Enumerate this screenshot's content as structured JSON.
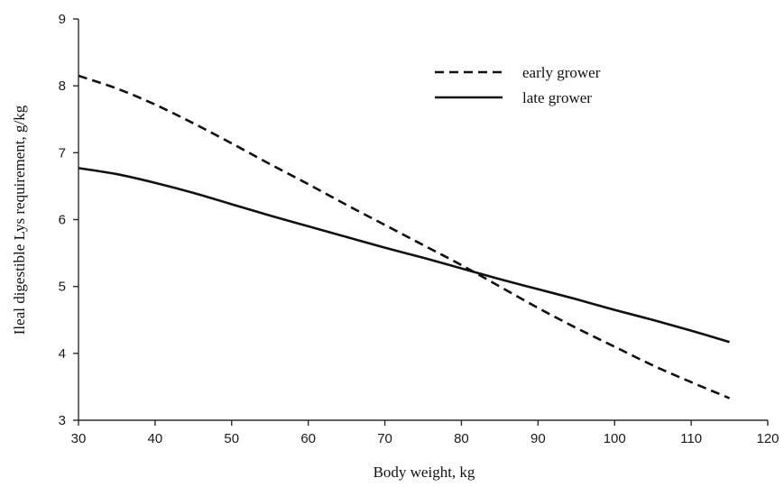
{
  "chart_data": {
    "type": "line",
    "title": "",
    "xlabel": "Body weight, kg",
    "ylabel": "Ileal digestible Lys requirement, g/kg",
    "xlim": [
      30,
      120
    ],
    "ylim": [
      3,
      9
    ],
    "xticks": [
      "30",
      "40",
      "50",
      "60",
      "70",
      "80",
      "90",
      "100",
      "110",
      "120"
    ],
    "yticks": [
      "3",
      "4",
      "5",
      "6",
      "7",
      "8",
      "9"
    ],
    "grid": false,
    "legend_position": "top-right",
    "series": [
      {
        "name": "early grower",
        "style": "dashed",
        "color": "#111111",
        "x": [
          30,
          35,
          40,
          45,
          50,
          55,
          60,
          65,
          70,
          75,
          80,
          85,
          90,
          95,
          100,
          105,
          110,
          115
        ],
        "y": [
          8.15,
          7.96,
          7.72,
          7.44,
          7.14,
          6.83,
          6.53,
          6.22,
          5.92,
          5.62,
          5.32,
          5.0,
          4.68,
          4.38,
          4.1,
          3.82,
          3.57,
          3.33
        ]
      },
      {
        "name": "late grower",
        "style": "solid",
        "color": "#111111",
        "x": [
          30,
          35,
          40,
          45,
          50,
          55,
          60,
          65,
          70,
          75,
          80,
          85,
          90,
          95,
          100,
          105,
          110,
          115
        ],
        "y": [
          6.77,
          6.68,
          6.55,
          6.4,
          6.23,
          6.06,
          5.9,
          5.74,
          5.58,
          5.43,
          5.27,
          5.11,
          4.96,
          4.81,
          4.65,
          4.5,
          4.34,
          4.17
        ]
      }
    ]
  }
}
